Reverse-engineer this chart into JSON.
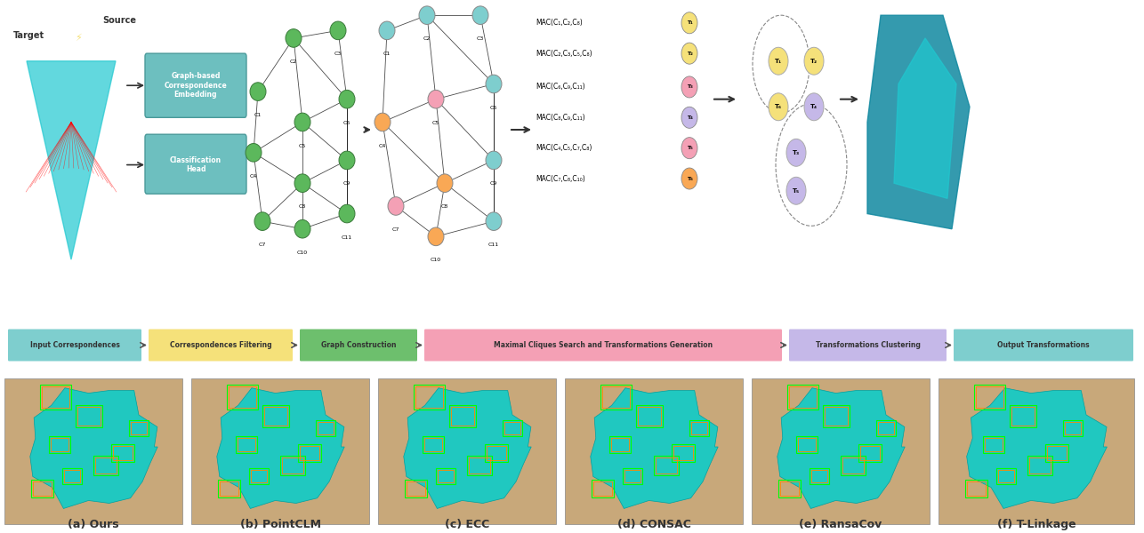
{
  "title": "",
  "bg_color": "#ffffff",
  "pipeline_labels": [
    "Input Correspondences",
    "Correspondences Filtering",
    "Graph Construction",
    "Maximal Cliques Search and Transformations Generation",
    "Transformations Clustering",
    "Output Transformations"
  ],
  "pipeline_colors": [
    "#7ecece",
    "#f5e17a",
    "#6dbf6d",
    "#f4a0b5",
    "#c5b8e8",
    "#7ecece"
  ],
  "bottom_labels": [
    "(a) Ours",
    "(b) PointCLM",
    "(c) ECC",
    "(d) CONSAC",
    "(e) RansaCov",
    "(f) T-Linkage"
  ],
  "mac_labels": [
    "MAC(C₁,C₂,C₈)",
    "MAC(C₂,C₃,C₅,C₈)",
    "MAC(C₆,C₉,C₁₁)",
    "MAC(C₈,C₉,C₁₁)",
    "MAC(C₄,C₅,C₇,C₈)",
    "MAC(C₇,C₈,C₁₀)"
  ],
  "mac_colors": [
    "#f4a0b5",
    "#f4a0b5",
    "#f4a0b5",
    "#f4a0b5",
    "#f4a0b5",
    "#f4a0b5"
  ],
  "t_labels": [
    "T₁",
    "T₂",
    "T₃",
    "T₄",
    "T₅",
    "T₆"
  ],
  "t_colors": [
    "#f5e17a",
    "#f5e17a",
    "#c5b8e8",
    "#c5b8e8",
    "#c5b8e8",
    "#f5e17a"
  ],
  "node_colors_left": {
    "C1": "#6dbf6d",
    "C2": "#6dbf6d",
    "C3": "#6dbf6d",
    "C4": "#6dbf6d",
    "C5": "#6dbf6d",
    "C6": "#6dbf6d",
    "C7": "#6dbf6d",
    "C8": "#6dbf6d",
    "C9": "#6dbf6d",
    "C10": "#6dbf6d",
    "C11": "#6dbf6d"
  },
  "node_colors_right": {
    "C1": "#7ecece",
    "C2": "#7ecece",
    "C3": "#7ecece",
    "C4": "#f9a855",
    "C5": "#f4a0b5",
    "C6": "#7ecece",
    "C7": "#f4a0b5",
    "C8": "#f9a855",
    "C9": "#7ecece",
    "C10": "#f9a855",
    "C11": "#7ecece"
  },
  "source_label": "Source",
  "target_label": "Target",
  "box1_label": "Graph-based\nCorrespondence\nEmbedding",
  "box2_label": "Classification\nHead",
  "box_color": "#7ecece"
}
